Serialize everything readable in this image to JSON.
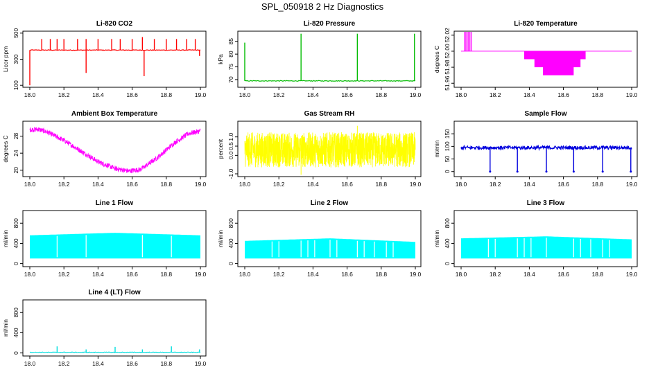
{
  "figure": {
    "title": "SPL_050918  2 Hz Diagnostics"
  },
  "chart_data": [
    {
      "type": "line",
      "title": "Li-820 CO2",
      "xlabel": "",
      "ylabel": "Licor ppm",
      "xlim": [
        18.0,
        19.0
      ],
      "ylim": [
        85,
        515
      ],
      "xticks": [
        "18.0",
        "18.2",
        "18.4",
        "18.6",
        "18.8",
        "19.0"
      ],
      "yticks": [
        {
          "value": 100,
          "label": "100"
        },
        {
          "value": 300,
          "label": "300"
        },
        {
          "value": 500,
          "label": "500"
        }
      ],
      "series": [
        {
          "color": "#ff0000",
          "baseline": 370,
          "spikes": [
            {
              "x": 18.0,
              "y": 100
            },
            {
              "x": 18.07,
              "y": 455
            },
            {
              "x": 18.12,
              "y": 455
            },
            {
              "x": 18.16,
              "y": 455
            },
            {
              "x": 18.2,
              "y": 455
            },
            {
              "x": 18.28,
              "y": 455
            },
            {
              "x": 18.33,
              "y": 455
            },
            {
              "x": 18.33,
              "y": 195
            },
            {
              "x": 18.4,
              "y": 455
            },
            {
              "x": 18.48,
              "y": 455
            },
            {
              "x": 18.53,
              "y": 455
            },
            {
              "x": 18.6,
              "y": 455
            },
            {
              "x": 18.66,
              "y": 470
            },
            {
              "x": 18.67,
              "y": 170
            },
            {
              "x": 18.73,
              "y": 455
            },
            {
              "x": 18.8,
              "y": 455
            },
            {
              "x": 18.86,
              "y": 455
            },
            {
              "x": 18.92,
              "y": 455
            },
            {
              "x": 18.97,
              "y": 455
            },
            {
              "x": 18.995,
              "y": 325
            }
          ]
        }
      ]
    },
    {
      "type": "line",
      "title": "Li-820 Pressure",
      "xlabel": "",
      "ylabel": "kPa",
      "xlim": [
        18.0,
        19.0
      ],
      "ylim": [
        67,
        89
      ],
      "xticks": [
        "18.0",
        "18.2",
        "18.4",
        "18.6",
        "18.8",
        "19.0"
      ],
      "yticks": [
        {
          "value": 70,
          "label": "70"
        },
        {
          "value": 75,
          "label": "75"
        },
        {
          "value": 80,
          "label": "80"
        },
        {
          "value": 85,
          "label": "85"
        }
      ],
      "series": [
        {
          "color": "#00bb00",
          "baseline": 69.5,
          "spikes": [
            {
              "x": 18.0,
              "y": 84.5
            },
            {
              "x": 18.33,
              "y": 88
            },
            {
              "x": 18.66,
              "y": 88
            },
            {
              "x": 18.995,
              "y": 88
            }
          ]
        }
      ]
    },
    {
      "type": "line",
      "title": "Li-820 Temperature",
      "xlabel": "",
      "ylabel": "degrees C",
      "xlim": [
        18.0,
        19.0
      ],
      "ylim": [
        51.955,
        52.025
      ],
      "xticks": [
        "18.0",
        "18.2",
        "18.4",
        "18.6",
        "18.8",
        "19.0"
      ],
      "yticks": [
        {
          "value": 51.96,
          "label": "51.96"
        },
        {
          "value": 51.98,
          "label": "51.98"
        },
        {
          "value": 52.0,
          "label": "52.00"
        },
        {
          "value": 52.02,
          "label": "52.02"
        }
      ],
      "series": [
        {
          "color": "#ff00ff",
          "baseline": 52.0,
          "bursts_up": [
            [
              18.02,
              18.06
            ]
          ],
          "bursts_down": [
            {
              "x": [
                18.37,
                18.73
              ],
              "min": 51.99
            },
            {
              "x": [
                18.43,
                18.7
              ],
              "min": 51.98
            },
            {
              "x": [
                18.48,
                18.66
              ],
              "min": 51.97
            }
          ]
        }
      ]
    },
    {
      "type": "line",
      "title": "Ambient Box Temperature",
      "xlabel": "",
      "ylabel": "degrees C",
      "xlim": [
        18.0,
        19.0
      ],
      "ylim": [
        18.5,
        31.5
      ],
      "xticks": [
        "18.0",
        "18.2",
        "18.4",
        "18.6",
        "18.8",
        "19.0"
      ],
      "yticks": [
        {
          "value": 20,
          "label": "20"
        },
        {
          "value": 24,
          "label": "24"
        },
        {
          "value": 28,
          "label": "28"
        }
      ],
      "series": [
        {
          "color": "#ff00ff",
          "noise": 1.2,
          "points": [
            [
              18.0,
              29.5
            ],
            [
              18.05,
              29.6
            ],
            [
              18.1,
              29.0
            ],
            [
              18.2,
              27.0
            ],
            [
              18.3,
              24.5
            ],
            [
              18.4,
              22.0
            ],
            [
              18.5,
              20.4
            ],
            [
              18.58,
              19.8
            ],
            [
              18.65,
              20.2
            ],
            [
              18.75,
              23.0
            ],
            [
              18.85,
              26.5
            ],
            [
              18.93,
              28.6
            ],
            [
              19.0,
              29.2
            ]
          ]
        }
      ]
    },
    {
      "type": "line",
      "title": "Gas Stream RH",
      "xlabel": "",
      "ylabel": "percent",
      "xlim": [
        18.0,
        19.0
      ],
      "ylim": [
        -1.15,
        1.85
      ],
      "xticks": [
        "18.0",
        "18.2",
        "18.4",
        "18.6",
        "18.8",
        "19.0"
      ],
      "yticks": [
        {
          "value": -1.0,
          "label": "-1.0"
        },
        {
          "value": 0.0,
          "label": "0.0"
        },
        {
          "value": 0.5,
          "label": "0.5"
        },
        {
          "value": 1.0,
          "label": "1.0"
        }
      ],
      "series": [
        {
          "color": "#ffff00",
          "band": [
            -0.65,
            1.25
          ],
          "outliers": [
            -1.05,
            1.6
          ]
        }
      ]
    },
    {
      "type": "line",
      "title": "Sample Flow",
      "xlabel": "",
      "ylabel": "ml/min",
      "xlim": [
        18.0,
        19.0
      ],
      "ylim": [
        -20,
        200
      ],
      "xticks": [
        "18.0",
        "18.2",
        "18.4",
        "18.6",
        "18.8",
        "19.0"
      ],
      "yticks": [
        {
          "value": 0,
          "label": "0"
        },
        {
          "value": 50,
          "label": "50"
        },
        {
          "value": 100,
          "label": "100"
        },
        {
          "value": 150,
          "label": "150"
        }
      ],
      "series": [
        {
          "color": "#0000dd",
          "baseline": 95,
          "drops": [
            18.17,
            18.33,
            18.5,
            18.66,
            18.83,
            18.995
          ]
        }
      ]
    },
    {
      "type": "area",
      "title": "Line 1 Flow",
      "xlabel": "",
      "ylabel": "ml/min",
      "xlim": [
        18.0,
        19.0
      ],
      "ylim": [
        -60,
        1050
      ],
      "xticks": [
        "18.0",
        "18.2",
        "18.4",
        "18.6",
        "18.8",
        "19.0"
      ],
      "yticks": [
        {
          "value": 0,
          "label": "0"
        },
        {
          "value": 400,
          "label": "400"
        },
        {
          "value": 800,
          "label": "800"
        }
      ],
      "series": [
        {
          "color": "#00ffff",
          "low": 100,
          "high": [
            [
              18.0,
              560
            ],
            [
              18.5,
              610
            ],
            [
              19.0,
              560
            ]
          ],
          "gaps": [
            18.16,
            18.33,
            18.66,
            18.83
          ]
        }
      ]
    },
    {
      "type": "area",
      "title": "Line 2 Flow",
      "xlabel": "",
      "ylabel": "ml/min",
      "xlim": [
        18.0,
        19.0
      ],
      "ylim": [
        -60,
        1050
      ],
      "xticks": [
        "18.0",
        "18.2",
        "18.4",
        "18.6",
        "18.8",
        "19.0"
      ],
      "yticks": [
        {
          "value": 0,
          "label": "0"
        },
        {
          "value": 400,
          "label": "400"
        },
        {
          "value": 800,
          "label": "800"
        }
      ],
      "series": [
        {
          "color": "#00ffff",
          "low": 100,
          "high": [
            [
              18.0,
              450
            ],
            [
              18.5,
              500
            ],
            [
              19.0,
              430
            ]
          ],
          "gaps": [
            18.16,
            18.2,
            18.33,
            18.37,
            18.41,
            18.5,
            18.54,
            18.66,
            18.7,
            18.76,
            18.83,
            18.87
          ]
        }
      ]
    },
    {
      "type": "area",
      "title": "Line 3 Flow",
      "xlabel": "",
      "ylabel": "ml/min",
      "xlim": [
        18.0,
        19.0
      ],
      "ylim": [
        -60,
        1050
      ],
      "xticks": [
        "18.0",
        "18.2",
        "18.4",
        "18.6",
        "18.8",
        "19.0"
      ],
      "yticks": [
        {
          "value": 0,
          "label": "0"
        },
        {
          "value": 400,
          "label": "400"
        },
        {
          "value": 800,
          "label": "800"
        }
      ],
      "series": [
        {
          "color": "#00ffff",
          "low": 100,
          "high": [
            [
              18.0,
              500
            ],
            [
              18.5,
              540
            ],
            [
              19.0,
              480
            ]
          ],
          "gaps": [
            18.16,
            18.2,
            18.33,
            18.37,
            18.41,
            18.5,
            18.66,
            18.7,
            18.76,
            18.83,
            18.87
          ]
        }
      ]
    },
    {
      "type": "line",
      "title": "Line 4 (LT) Flow",
      "xlabel": "",
      "ylabel": "ml/min",
      "xlim": [
        18.0,
        19.0
      ],
      "ylim": [
        -60,
        1050
      ],
      "xticks": [
        "18.0",
        "18.2",
        "18.4",
        "18.6",
        "18.8",
        "19.0"
      ],
      "yticks": [
        {
          "value": 0,
          "label": "0"
        },
        {
          "value": 400,
          "label": "400"
        },
        {
          "value": 800,
          "label": "800"
        }
      ],
      "series": [
        {
          "color": "#00dddd",
          "baseline": 12,
          "spikes": [
            {
              "x": 18.16,
              "y": 130
            },
            {
              "x": 18.33,
              "y": 70
            },
            {
              "x": 18.5,
              "y": 120
            },
            {
              "x": 18.66,
              "y": 70
            },
            {
              "x": 18.83,
              "y": 130
            },
            {
              "x": 18.995,
              "y": 70
            }
          ]
        }
      ]
    }
  ]
}
